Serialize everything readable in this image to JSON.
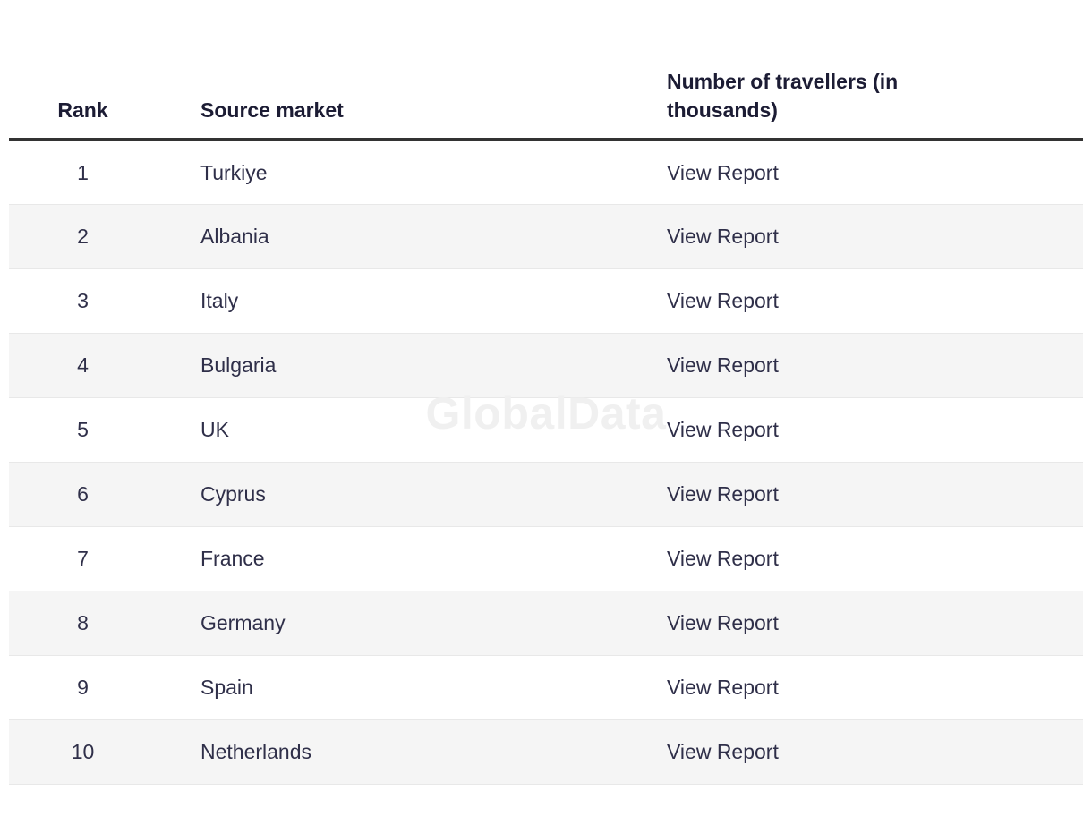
{
  "watermark": "GlobalData",
  "colors": {
    "header_text": "#1c1c34",
    "body_text": "#2f2f49",
    "header_border": "#333333",
    "row_stripe": "#f5f5f5",
    "stripe_border": "#e8e8e8",
    "watermark": "#f0f0f0"
  },
  "table": {
    "columns": [
      {
        "label": "Rank"
      },
      {
        "label": "Source market"
      },
      {
        "label": "Number of travellers (in thousands)"
      }
    ],
    "rows": [
      {
        "rank": "1",
        "market": "Turkiye",
        "action": "View Report"
      },
      {
        "rank": "2",
        "market": "Albania",
        "action": "View Report"
      },
      {
        "rank": "3",
        "market": "Italy",
        "action": "View Report"
      },
      {
        "rank": "4",
        "market": "Bulgaria",
        "action": "View Report"
      },
      {
        "rank": "5",
        "market": "UK",
        "action": "View Report"
      },
      {
        "rank": "6",
        "market": "Cyprus",
        "action": "View Report"
      },
      {
        "rank": "7",
        "market": "France",
        "action": "View Report"
      },
      {
        "rank": "8",
        "market": "Germany",
        "action": "View Report"
      },
      {
        "rank": "9",
        "market": "Spain",
        "action": "View Report"
      },
      {
        "rank": "10",
        "market": "Netherlands",
        "action": "View Report"
      }
    ]
  },
  "chart_data": {
    "type": "table",
    "title": "",
    "columns": [
      "Rank",
      "Source market",
      "Number of travellers (in thousands)"
    ],
    "rows": [
      [
        "1",
        "Turkiye",
        "View Report"
      ],
      [
        "2",
        "Albania",
        "View Report"
      ],
      [
        "3",
        "Italy",
        "View Report"
      ],
      [
        "4",
        "Bulgaria",
        "View Report"
      ],
      [
        "5",
        "UK",
        "View Report"
      ],
      [
        "6",
        "Cyprus",
        "View Report"
      ],
      [
        "7",
        "France",
        "View Report"
      ],
      [
        "8",
        "Germany",
        "View Report"
      ],
      [
        "9",
        "Spain",
        "View Report"
      ],
      [
        "10",
        "Netherlands",
        "View Report"
      ]
    ],
    "layout_hints": {
      "striped_rows": "even rows shaded",
      "watermark_text": "GlobalData",
      "values_column_shows_links_instead_of_numbers": true
    }
  }
}
